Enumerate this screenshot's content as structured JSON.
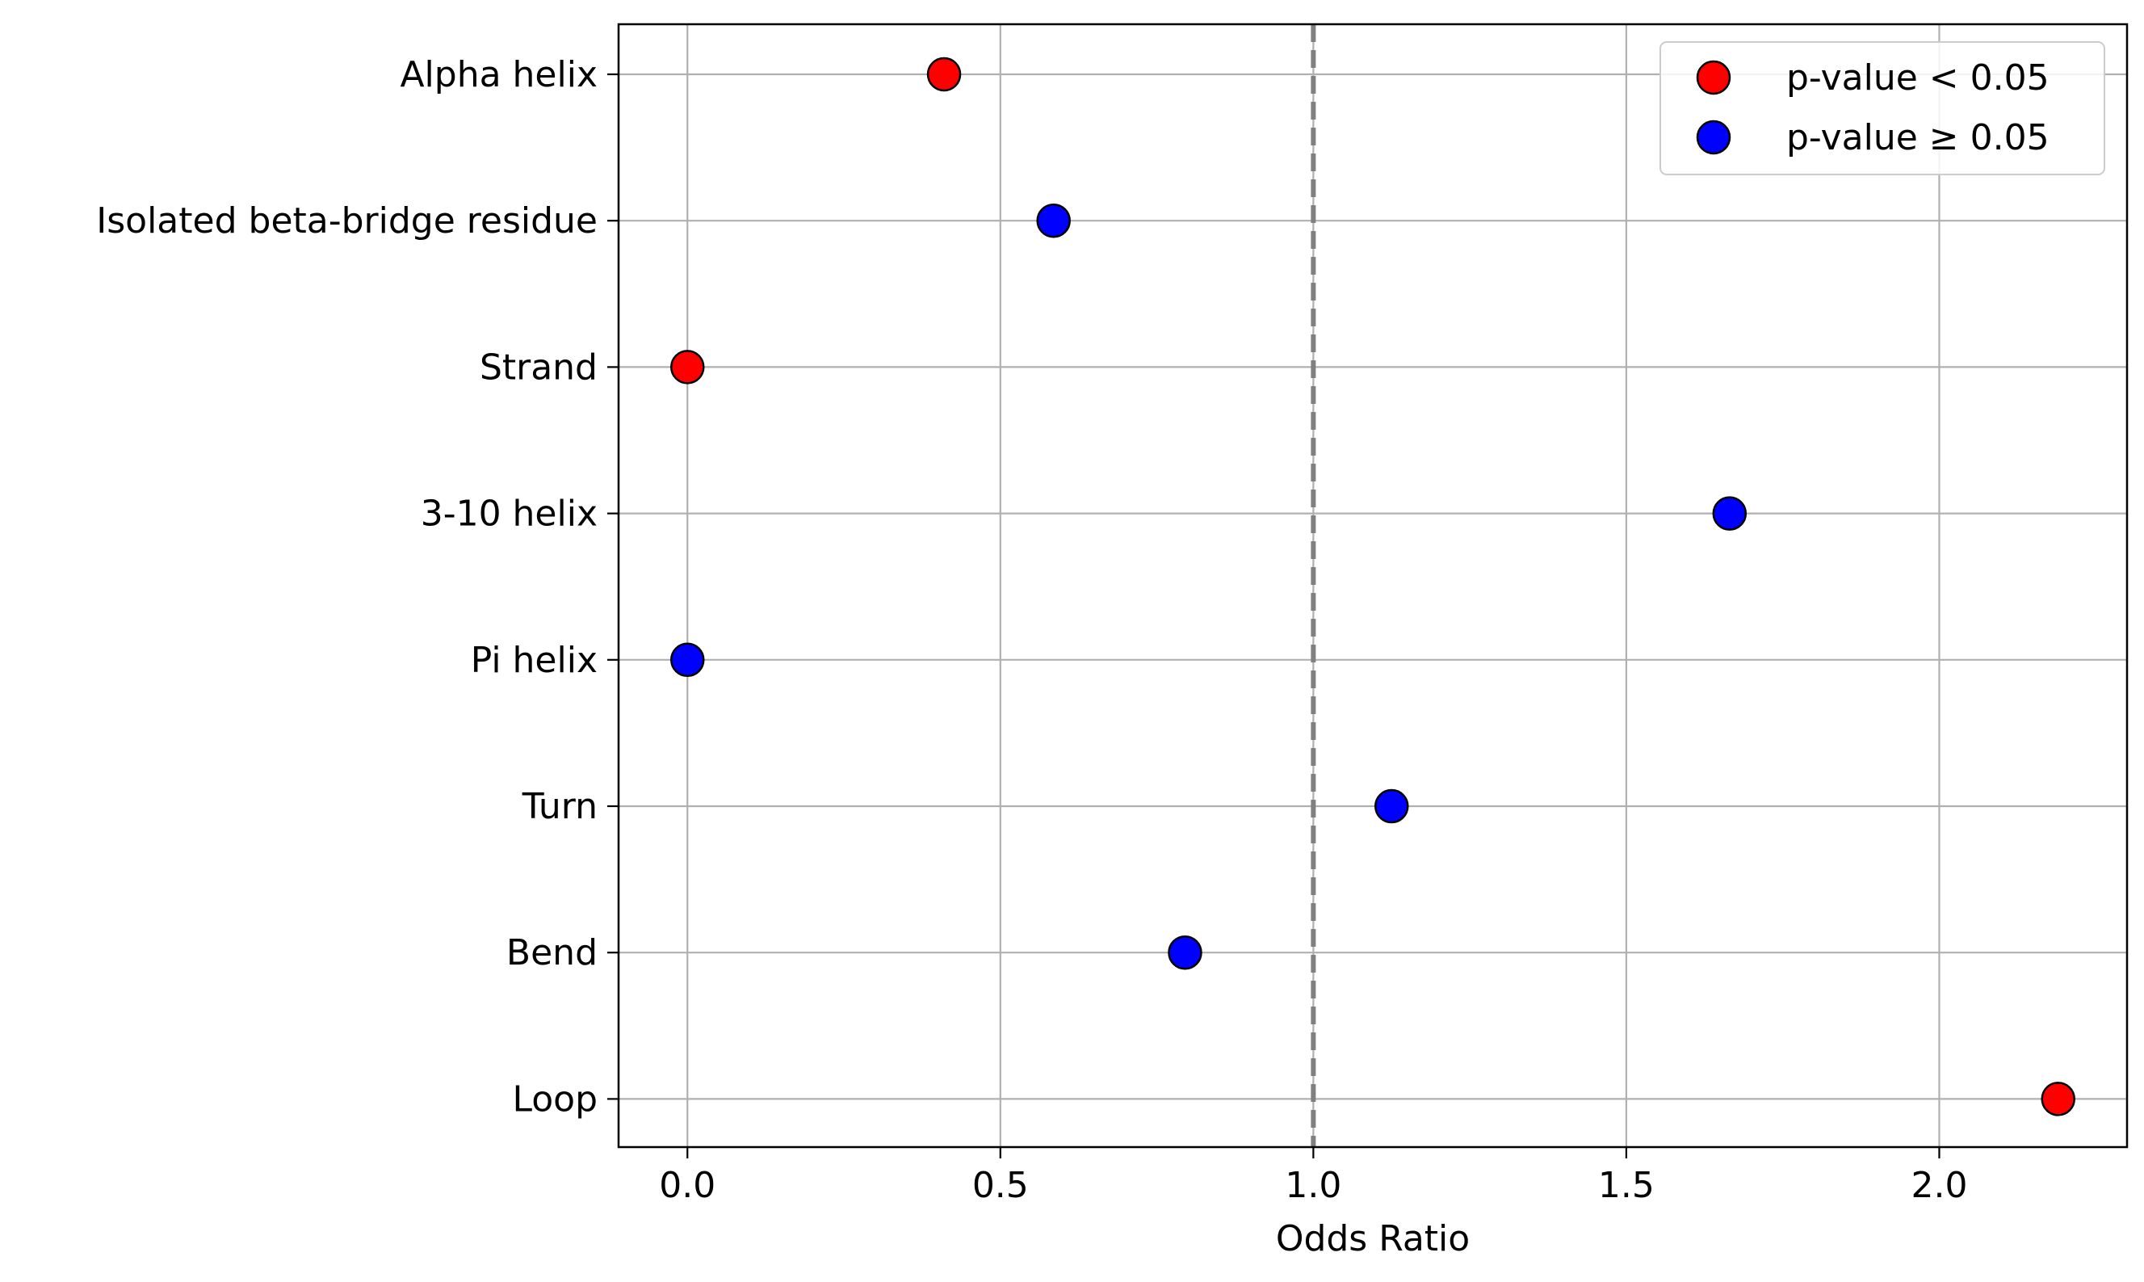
{
  "chart_data": {
    "type": "scatter",
    "xlabel": "Odds Ratio",
    "ylabel": "",
    "xlim": [
      -0.11,
      2.3
    ],
    "x_ticks": [
      "0.0",
      "0.5",
      "1.0",
      "1.5",
      "2.0"
    ],
    "x_tick_values": [
      0.0,
      0.5,
      1.0,
      1.5,
      2.0
    ],
    "categories": [
      "Alpha helix",
      "Isolated beta-bridge residue",
      "Strand",
      "3-10 helix",
      "Pi helix",
      "Turn",
      "Bend",
      "Loop"
    ],
    "points": [
      {
        "category": "Alpha helix",
        "x": 0.41,
        "group": "sig"
      },
      {
        "category": "Isolated beta-bridge residue",
        "x": 0.585,
        "group": "nonsig"
      },
      {
        "category": "Strand",
        "x": 0.0,
        "group": "sig"
      },
      {
        "category": "3-10 helix",
        "x": 1.665,
        "group": "nonsig"
      },
      {
        "category": "Pi helix",
        "x": 0.0,
        "group": "nonsig"
      },
      {
        "category": "Turn",
        "x": 1.125,
        "group": "nonsig"
      },
      {
        "category": "Bend",
        "x": 0.795,
        "group": "nonsig"
      },
      {
        "category": "Loop",
        "x": 2.19,
        "group": "sig"
      }
    ],
    "groups": {
      "sig": {
        "label": "p-value < 0.05",
        "color": "#ff0000"
      },
      "nonsig": {
        "label": "p-value ≥ 0.05",
        "color": "#0000ff"
      }
    },
    "reference_line": {
      "x": 1.0,
      "color": "#808080",
      "style": "dashed"
    },
    "grid": true,
    "legend_position": "top-right"
  }
}
